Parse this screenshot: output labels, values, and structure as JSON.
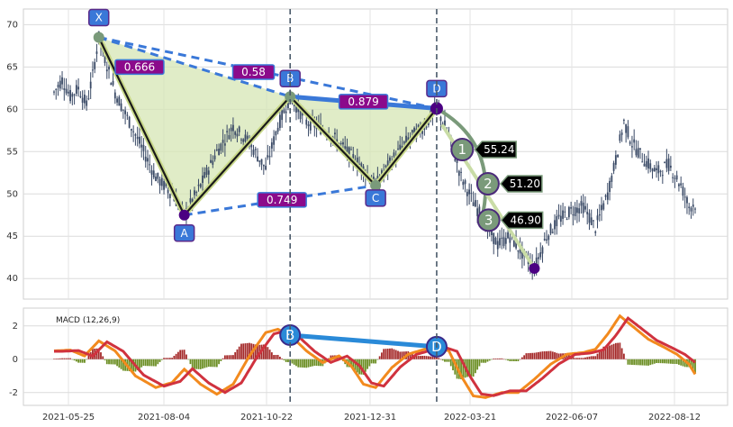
{
  "chart_data": [
    {
      "type": "candlestick-pattern",
      "ylim": [
        38,
        71
      ],
      "y_ticks": [
        40,
        45,
        50,
        55,
        60,
        65,
        70
      ],
      "x_ticks": [
        "2021-05-25",
        "2021-08-04",
        "2021-10-22",
        "2021-12-31",
        "2022-03-21",
        "2022-06-07",
        "2022-08-12"
      ],
      "grid": true,
      "price_path": [
        {
          "t": 0,
          "v": 62
        },
        {
          "t": 4,
          "v": 63.5
        },
        {
          "t": 8,
          "v": 61.5
        },
        {
          "t": 12,
          "v": 62.5
        },
        {
          "t": 16,
          "v": 60.5
        },
        {
          "t": 19,
          "v": 64
        },
        {
          "t": 22,
          "v": 68.5
        },
        {
          "t": 30,
          "v": 62
        },
        {
          "t": 40,
          "v": 57
        },
        {
          "t": 50,
          "v": 52
        },
        {
          "t": 58,
          "v": 50
        },
        {
          "t": 64,
          "v": 47.5
        },
        {
          "t": 72,
          "v": 51
        },
        {
          "t": 80,
          "v": 55
        },
        {
          "t": 88,
          "v": 58
        },
        {
          "t": 96,
          "v": 56
        },
        {
          "t": 104,
          "v": 53
        },
        {
          "t": 110,
          "v": 58
        },
        {
          "t": 116,
          "v": 61.5
        },
        {
          "t": 124,
          "v": 58.5
        },
        {
          "t": 134,
          "v": 57.5
        },
        {
          "t": 144,
          "v": 55
        },
        {
          "t": 152,
          "v": 53
        },
        {
          "t": 158,
          "v": 51
        },
        {
          "t": 166,
          "v": 54
        },
        {
          "t": 174,
          "v": 56.5
        },
        {
          "t": 182,
          "v": 58
        },
        {
          "t": 188,
          "v": 60.1
        },
        {
          "t": 194,
          "v": 57
        },
        {
          "t": 200,
          "v": 52
        },
        {
          "t": 206,
          "v": 49
        },
        {
          "t": 212,
          "v": 46.5
        },
        {
          "t": 218,
          "v": 44
        },
        {
          "t": 224,
          "v": 45
        },
        {
          "t": 230,
          "v": 43
        },
        {
          "t": 236,
          "v": 41.2
        },
        {
          "t": 242,
          "v": 45
        },
        {
          "t": 248,
          "v": 47
        },
        {
          "t": 254,
          "v": 48
        },
        {
          "t": 260,
          "v": 48.5
        },
        {
          "t": 266,
          "v": 46
        },
        {
          "t": 272,
          "v": 50
        },
        {
          "t": 276,
          "v": 54
        },
        {
          "t": 280,
          "v": 58.5
        },
        {
          "t": 284,
          "v": 56
        },
        {
          "t": 290,
          "v": 54
        },
        {
          "t": 296,
          "v": 52.5
        },
        {
          "t": 302,
          "v": 53.5
        },
        {
          "t": 308,
          "v": 51
        },
        {
          "t": 312,
          "v": 48.5
        },
        {
          "t": 315,
          "v": 48.8
        }
      ],
      "pattern_points": [
        {
          "label": "X",
          "t": 22,
          "v": 68.5
        },
        {
          "label": "A",
          "t": 64,
          "v": 47.5
        },
        {
          "label": "B",
          "t": 116,
          "v": 61.5
        },
        {
          "label": "C",
          "t": 158,
          "v": 51
        },
        {
          "label": "D",
          "t": 188,
          "v": 60.1
        }
      ],
      "ratios": [
        {
          "value": "0.666",
          "t": 42,
          "v": 65
        },
        {
          "value": "0.58",
          "t": 98,
          "v": 64.4
        },
        {
          "value": "0.879",
          "t": 152,
          "v": 60.9
        },
        {
          "value": "0.749",
          "t": 112,
          "v": 49.3
        }
      ],
      "targets": [
        {
          "label": "1",
          "value": "55.24",
          "t": 197,
          "v": 55.24
        },
        {
          "label": "2",
          "value": "51.20",
          "t": 207,
          "v": 51.2
        },
        {
          "label": "3",
          "value": "46.90",
          "t": 210,
          "v": 46.9
        }
      ],
      "target_low": {
        "t": 236,
        "v": 41.2
      },
      "vlines_t": [
        116,
        188
      ]
    },
    {
      "type": "macd",
      "title": "MACD (12,26,9)",
      "ylim": [
        -2.5,
        2.8
      ],
      "y_ticks": [
        -2,
        0,
        2
      ],
      "points": [
        {
          "label": "B",
          "t": 116,
          "v": 1.45
        },
        {
          "label": "D",
          "t": 188,
          "v": 0.75
        }
      ],
      "macd_path": [
        {
          "t": 0,
          "v": 0.5
        },
        {
          "t": 8,
          "v": 0.55
        },
        {
          "t": 15,
          "v": 0.2
        },
        {
          "t": 22,
          "v": 1.1
        },
        {
          "t": 30,
          "v": 0.5
        },
        {
          "t": 40,
          "v": -1.0
        },
        {
          "t": 50,
          "v": -1.7
        },
        {
          "t": 58,
          "v": -1.4
        },
        {
          "t": 64,
          "v": -0.6
        },
        {
          "t": 72,
          "v": -1.5
        },
        {
          "t": 80,
          "v": -2.1
        },
        {
          "t": 88,
          "v": -1.5
        },
        {
          "t": 96,
          "v": 0.2
        },
        {
          "t": 104,
          "v": 1.6
        },
        {
          "t": 110,
          "v": 1.8
        },
        {
          "t": 116,
          "v": 1.45
        },
        {
          "t": 124,
          "v": 0.5
        },
        {
          "t": 132,
          "v": -0.2
        },
        {
          "t": 140,
          "v": 0.2
        },
        {
          "t": 146,
          "v": -0.4
        },
        {
          "t": 152,
          "v": -1.5
        },
        {
          "t": 158,
          "v": -1.7
        },
        {
          "t": 166,
          "v": -0.5
        },
        {
          "t": 174,
          "v": 0.3
        },
        {
          "t": 182,
          "v": 0.6
        },
        {
          "t": 188,
          "v": 0.75
        },
        {
          "t": 194,
          "v": 0.5
        },
        {
          "t": 200,
          "v": -1.0
        },
        {
          "t": 206,
          "v": -2.2
        },
        {
          "t": 212,
          "v": -2.3
        },
        {
          "t": 220,
          "v": -2.0
        },
        {
          "t": 228,
          "v": -2.0
        },
        {
          "t": 236,
          "v": -1.2
        },
        {
          "t": 244,
          "v": -0.3
        },
        {
          "t": 252,
          "v": 0.3
        },
        {
          "t": 260,
          "v": 0.4
        },
        {
          "t": 266,
          "v": 0.6
        },
        {
          "t": 272,
          "v": 1.5
        },
        {
          "t": 278,
          "v": 2.6
        },
        {
          "t": 284,
          "v": 2.0
        },
        {
          "t": 292,
          "v": 1.2
        },
        {
          "t": 300,
          "v": 0.7
        },
        {
          "t": 306,
          "v": 0.3
        },
        {
          "t": 312,
          "v": -0.3
        },
        {
          "t": 315,
          "v": -0.9
        }
      ],
      "signal_lag": 4,
      "colors": {
        "macd": "#f28a1e",
        "signal": "#d0323e",
        "hist_pos": "#a52a2a",
        "hist_neg": "#6b8e23"
      }
    }
  ],
  "colors": {
    "candle": "#3a4a66",
    "pattern_fill": "#d6e6b4",
    "pattern_edge": "#1a1a1a",
    "dashed": "#3a78d8",
    "bd_line": "#3a78d8",
    "point_box": "#3a78d8",
    "ratio_box": "#8b0a8b",
    "point_marker": "#7a9a7a",
    "extreme_marker": "#4b0082",
    "target_circle": "#7a9a7a",
    "target_label_bg": "#000000",
    "vline": "#4a5a6a",
    "arc": "#7a9a7a"
  }
}
